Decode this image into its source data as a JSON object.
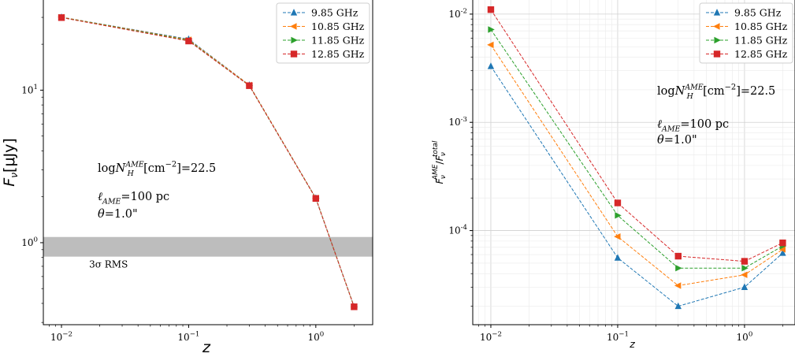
{
  "chart_data": [
    {
      "type": "line",
      "xscale": "log",
      "yscale": "log",
      "xlim": [
        0.0072,
        2.8
      ],
      "ylim": [
        0.29,
        39
      ],
      "xlabel": "z",
      "ylabel": "F_ν[μJy]",
      "x_ticks": [
        {
          "value": 0.01,
          "base": "10",
          "exp": "−2"
        },
        {
          "value": 0.1,
          "base": "10",
          "exp": "−1"
        },
        {
          "value": 1,
          "base": "10",
          "exp": "0"
        }
      ],
      "y_ticks": [
        {
          "value": 1,
          "base": "10",
          "exp": "0"
        },
        {
          "value": 10,
          "base": "10",
          "exp": "1"
        }
      ],
      "x": [
        0.01,
        0.1,
        0.3,
        1.0,
        2.0
      ],
      "series": [
        {
          "name": "9.85 GHz",
          "color": "#1f77b4",
          "marker": "triangle-up",
          "values": [
            30.1,
            21.6,
            10.8,
            1.96,
            0.38
          ]
        },
        {
          "name": "10.85 GHz",
          "color": "#ff7f0e",
          "marker": "triangle-left",
          "values": [
            30.1,
            21.4,
            10.8,
            1.96,
            0.38
          ]
        },
        {
          "name": "11.85 GHz",
          "color": "#2ca02c",
          "marker": "triangle-right",
          "values": [
            30.0,
            21.2,
            10.7,
            1.95,
            0.38
          ]
        },
        {
          "name": "12.85 GHz",
          "color": "#d62728",
          "marker": "square",
          "values": [
            29.9,
            21.0,
            10.7,
            1.95,
            0.38
          ]
        }
      ],
      "rms_band": {
        "low": 0.81,
        "high": 1.09,
        "label": "3σ RMS",
        "color": "#bdbdbd"
      },
      "grid": false,
      "legend": "top-right",
      "annotations": [
        {
          "prefix": "log",
          "var": "N",
          "sub": "H",
          "sup": "AME",
          "rest": "[cm",
          "rest_sup": "−2",
          "tail": "]=22.5"
        },
        {
          "var": "ℓ",
          "sub": "AME",
          "tail": "=100 pc"
        },
        {
          "var": "θ",
          "tail": "=1.0\""
        }
      ]
    },
    {
      "type": "line",
      "xscale": "log",
      "yscale": "log",
      "xlim": [
        0.0072,
        2.5
      ],
      "ylim": [
        1.35e-05,
        0.0135
      ],
      "xlabel": "z",
      "ylabel": "F_ν^AME/F_ν^total",
      "x_ticks": [
        {
          "value": 0.01,
          "base": "10",
          "exp": "−2"
        },
        {
          "value": 0.1,
          "base": "10",
          "exp": "−1"
        },
        {
          "value": 1,
          "base": "10",
          "exp": "0"
        }
      ],
      "y_ticks": [
        {
          "value": 0.0001,
          "base": "10",
          "exp": "-4"
        },
        {
          "value": 0.001,
          "base": "10",
          "exp": "-3"
        },
        {
          "value": 0.01,
          "base": "10",
          "exp": "-2"
        }
      ],
      "x": [
        0.01,
        0.1,
        0.3,
        1.0,
        2.0
      ],
      "series": [
        {
          "name": "9.85 GHz",
          "color": "#1f77b4",
          "marker": "triangle-up",
          "values": [
            0.0033,
            5.6e-05,
            2e-05,
            3e-05,
            6.2e-05
          ]
        },
        {
          "name": "10.85 GHz",
          "color": "#ff7f0e",
          "marker": "triangle-left",
          "values": [
            0.0052,
            8.8e-05,
            3.1e-05,
            3.9e-05,
            6.7e-05
          ]
        },
        {
          "name": "11.85 GHz",
          "color": "#2ca02c",
          "marker": "triangle-right",
          "values": [
            0.0072,
            0.000138,
            4.5e-05,
            4.5e-05,
            7.2e-05
          ]
        },
        {
          "name": "12.85 GHz",
          "color": "#d62728",
          "marker": "square",
          "values": [
            0.011,
            0.00018,
            5.8e-05,
            5.2e-05,
            7.7e-05
          ]
        }
      ],
      "grid": true,
      "legend": "top-right",
      "annotations": [
        {
          "prefix": "log",
          "var": "N",
          "sub": "H",
          "sup": "AME",
          "rest": "[cm",
          "rest_sup": "−2",
          "tail": "]=22.5"
        },
        {
          "var": "ℓ",
          "sub": "AME",
          "tail": "=100 pc"
        },
        {
          "var": "θ",
          "tail": "=1.0\""
        }
      ]
    }
  ]
}
